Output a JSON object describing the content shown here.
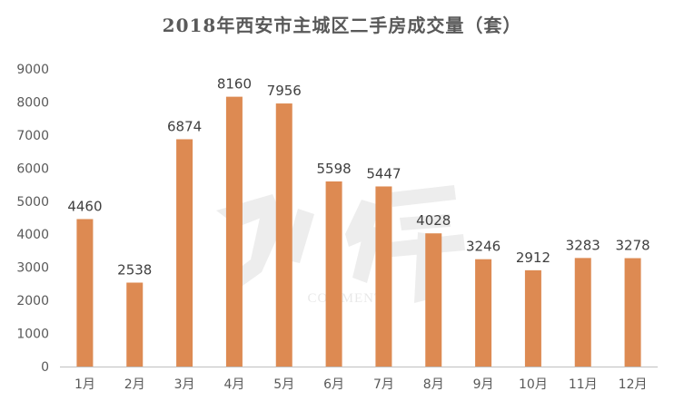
{
  "chart_data": {
    "type": "bar",
    "title": "2018年西安市主城区二手房成交量（套）",
    "categories": [
      "1月",
      "2月",
      "3月",
      "4月",
      "5月",
      "6月",
      "7月",
      "8月",
      "9月",
      "10月",
      "11月",
      "12月"
    ],
    "values": [
      4460,
      2538,
      6874,
      8160,
      7956,
      5598,
      5447,
      4028,
      3246,
      2912,
      3283,
      3278
    ],
    "yticks": [
      0,
      1000,
      2000,
      3000,
      4000,
      5000,
      6000,
      7000,
      8000,
      9000
    ],
    "ylim": [
      0,
      9000
    ],
    "bar_color": "#DD8A52",
    "grid": false,
    "legend": "none",
    "watermark": "COMMENTS"
  }
}
